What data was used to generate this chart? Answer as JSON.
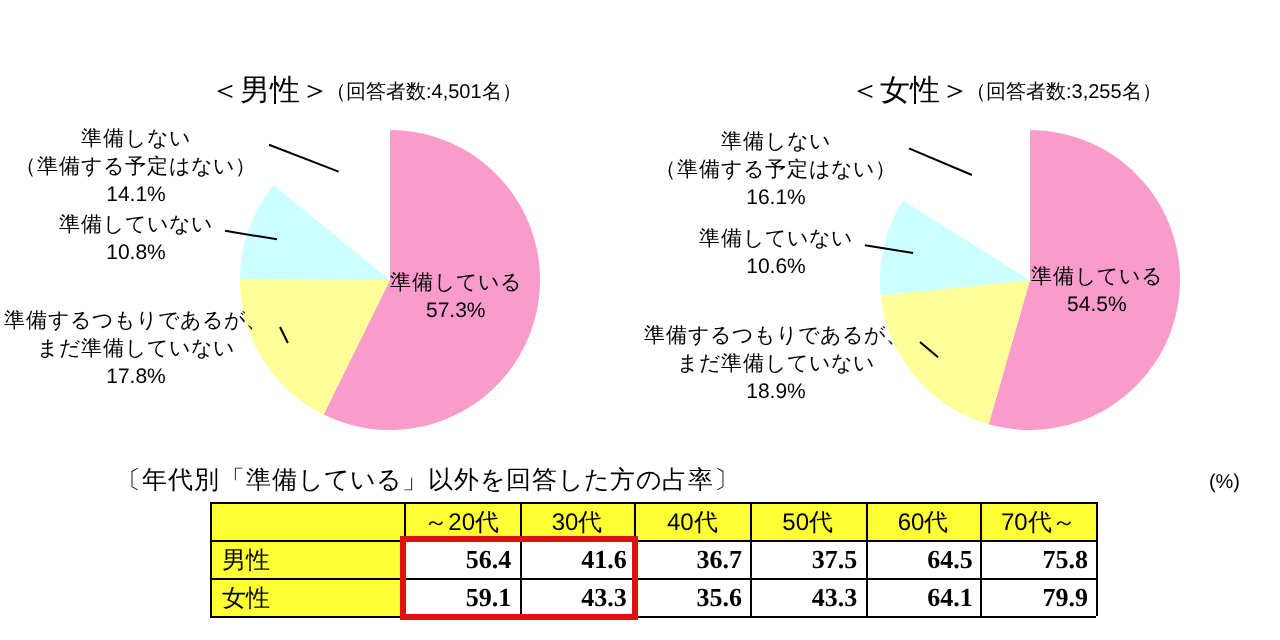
{
  "chart_data": [
    {
      "type": "pie",
      "title": "＜男性＞",
      "subtitle": "（回答者数:4,501名）",
      "categories": [
        "準備している",
        "準備するつもりであるが、まだ準備していない",
        "準備していない",
        "準備しない（準備する予定はない）"
      ],
      "values": [
        57.3,
        17.8,
        10.8,
        14.1
      ],
      "colors": [
        "#f99ccc",
        "#ffff99",
        "#ccffff",
        "#ffffff"
      ],
      "value_labels": [
        "57.3%",
        "17.8%",
        "10.8%",
        "14.1%"
      ]
    },
    {
      "type": "pie",
      "title": "＜女性＞",
      "subtitle": "（回答者数:3,255名）",
      "categories": [
        "準備している",
        "準備するつもりであるが、まだ準備していない",
        "準備していない",
        "準備しない（準備する予定はない）"
      ],
      "values": [
        54.5,
        18.9,
        10.6,
        16.1
      ],
      "colors": [
        "#f99ccc",
        "#ffff99",
        "#ccffff",
        "#ffffff"
      ],
      "value_labels": [
        "54.5%",
        "18.9%",
        "10.6%",
        "16.1%"
      ]
    },
    {
      "type": "heatmap",
      "title": "〔年代別「準備している」以外を回答した方の占率〕",
      "annotations": [
        "(%)"
      ],
      "categories": [
        "～20代",
        "30代",
        "40代",
        "50代",
        "60代",
        "70代～"
      ],
      "y_categories": [
        "男性",
        "女性"
      ],
      "color": "#ffff33",
      "data_labels": true,
      "cells": [
        [
          56.4,
          41.6,
          36.7,
          37.5,
          64.5,
          75.8
        ],
        [
          59.1,
          43.3,
          35.6,
          43.3,
          64.1,
          79.9
        ]
      ]
    }
  ]
}
